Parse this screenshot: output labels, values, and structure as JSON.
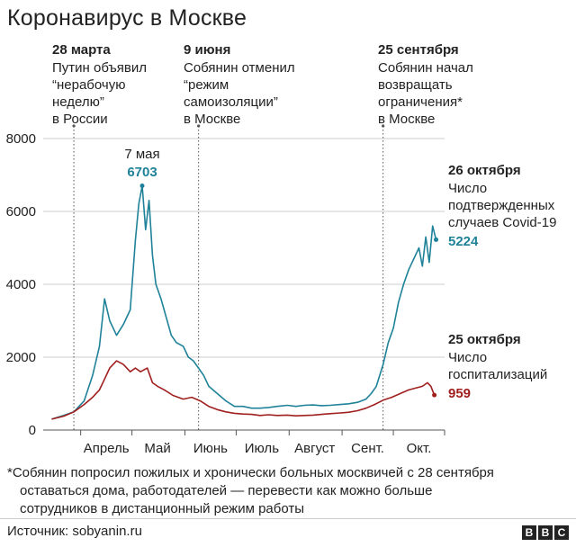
{
  "title": "Коронавирус в Москве",
  "events": [
    {
      "date": "28 марта",
      "text": [
        "Путин объявил",
        "“нерабочую",
        "неделю”",
        "в России"
      ]
    },
    {
      "date": "9 июня",
      "text": [
        "Собянин отменил",
        "“режим",
        "самоизоляции”",
        "в Москве"
      ]
    },
    {
      "date": "25 сентября",
      "text": [
        "Собянин начал",
        "возвращать",
        "ограничения*",
        "в Москве"
      ]
    }
  ],
  "peak": {
    "date": "7 мая",
    "value": "6703"
  },
  "cases_label": {
    "date": "26 октября",
    "lines": [
      "Число",
      "подтвержденных",
      "случаев Covid-19"
    ],
    "value": "5224"
  },
  "hosp_label": {
    "date": "25 октября",
    "lines": [
      "Число",
      "госпитализаций"
    ],
    "value": "959"
  },
  "footnote": [
    "*Собянин попросил пожилых и хронически больных москвичей с 28 сентября",
    "оставаться дома, работодателей — перевести как можно больше",
    "сотрудников в дистанционный режим работы"
  ],
  "source": "Источник: sobyanin.ru",
  "logo": [
    "B",
    "B",
    "C"
  ],
  "colors": {
    "cases": "#1f8299",
    "hospitalized": "#a01f1f",
    "grid": "#cccccc",
    "text": "#222222"
  },
  "chart_data": {
    "type": "line",
    "x_unit": "2020 date",
    "ylim": [
      0,
      8000
    ],
    "yticks": [
      0,
      2000,
      4000,
      6000,
      8000
    ],
    "xticks": [
      "Апрель",
      "Май",
      "Июнь",
      "Июль",
      "Август",
      "Сент.",
      "Окт."
    ],
    "series": [
      {
        "key": "cases",
        "points": [
          [
            "2020-03-15",
            300
          ],
          [
            "2020-03-22",
            400
          ],
          [
            "2020-03-28",
            500
          ],
          [
            "2020-04-03",
            800
          ],
          [
            "2020-04-08",
            1500
          ],
          [
            "2020-04-12",
            2300
          ],
          [
            "2020-04-15",
            3600
          ],
          [
            "2020-04-18",
            3000
          ],
          [
            "2020-04-22",
            2600
          ],
          [
            "2020-04-26",
            2900
          ],
          [
            "2020-04-30",
            3300
          ],
          [
            "2020-05-03",
            5200
          ],
          [
            "2020-05-05",
            6200
          ],
          [
            "2020-05-07",
            6703
          ],
          [
            "2020-05-09",
            5500
          ],
          [
            "2020-05-11",
            6300
          ],
          [
            "2020-05-13",
            4800
          ],
          [
            "2020-05-15",
            4000
          ],
          [
            "2020-05-18",
            3600
          ],
          [
            "2020-05-21",
            3100
          ],
          [
            "2020-05-24",
            2600
          ],
          [
            "2020-05-27",
            2400
          ],
          [
            "2020-05-31",
            2300
          ],
          [
            "2020-06-03",
            2000
          ],
          [
            "2020-06-06",
            1900
          ],
          [
            "2020-06-09",
            1700
          ],
          [
            "2020-06-12",
            1500
          ],
          [
            "2020-06-15",
            1200
          ],
          [
            "2020-06-20",
            1000
          ],
          [
            "2020-06-25",
            800
          ],
          [
            "2020-06-30",
            650
          ],
          [
            "2020-07-05",
            650
          ],
          [
            "2020-07-10",
            600
          ],
          [
            "2020-07-15",
            600
          ],
          [
            "2020-07-20",
            620
          ],
          [
            "2020-07-25",
            650
          ],
          [
            "2020-07-31",
            680
          ],
          [
            "2020-08-05",
            650
          ],
          [
            "2020-08-10",
            680
          ],
          [
            "2020-08-15",
            690
          ],
          [
            "2020-08-20",
            670
          ],
          [
            "2020-08-25",
            680
          ],
          [
            "2020-08-31",
            700
          ],
          [
            "2020-09-05",
            720
          ],
          [
            "2020-09-10",
            760
          ],
          [
            "2020-09-15",
            850
          ],
          [
            "2020-09-18",
            1000
          ],
          [
            "2020-09-21",
            1200
          ],
          [
            "2020-09-25",
            1800
          ],
          [
            "2020-09-28",
            2400
          ],
          [
            "2020-10-01",
            2800
          ],
          [
            "2020-10-04",
            3500
          ],
          [
            "2020-10-07",
            4000
          ],
          [
            "2020-10-10",
            4400
          ],
          [
            "2020-10-13",
            4700
          ],
          [
            "2020-10-16",
            5000
          ],
          [
            "2020-10-18",
            4500
          ],
          [
            "2020-10-20",
            5300
          ],
          [
            "2020-10-22",
            4600
          ],
          [
            "2020-10-24",
            5600
          ],
          [
            "2020-10-26",
            5224
          ]
        ]
      },
      {
        "key": "hospitalized",
        "points": [
          [
            "2020-03-15",
            300
          ],
          [
            "2020-03-22",
            380
          ],
          [
            "2020-03-28",
            500
          ],
          [
            "2020-04-03",
            700
          ],
          [
            "2020-04-08",
            900
          ],
          [
            "2020-04-12",
            1100
          ],
          [
            "2020-04-15",
            1400
          ],
          [
            "2020-04-18",
            1700
          ],
          [
            "2020-04-22",
            1900
          ],
          [
            "2020-04-26",
            1800
          ],
          [
            "2020-04-30",
            1600
          ],
          [
            "2020-05-03",
            1700
          ],
          [
            "2020-05-06",
            1600
          ],
          [
            "2020-05-10",
            1700
          ],
          [
            "2020-05-13",
            1300
          ],
          [
            "2020-05-16",
            1200
          ],
          [
            "2020-05-20",
            1100
          ],
          [
            "2020-05-25",
            950
          ],
          [
            "2020-05-31",
            850
          ],
          [
            "2020-06-05",
            900
          ],
          [
            "2020-06-10",
            800
          ],
          [
            "2020-06-15",
            650
          ],
          [
            "2020-06-20",
            560
          ],
          [
            "2020-06-25",
            500
          ],
          [
            "2020-06-30",
            460
          ],
          [
            "2020-07-05",
            440
          ],
          [
            "2020-07-10",
            430
          ],
          [
            "2020-07-15",
            400
          ],
          [
            "2020-07-20",
            420
          ],
          [
            "2020-07-25",
            400
          ],
          [
            "2020-07-31",
            410
          ],
          [
            "2020-08-05",
            390
          ],
          [
            "2020-08-10",
            400
          ],
          [
            "2020-08-15",
            410
          ],
          [
            "2020-08-20",
            430
          ],
          [
            "2020-08-25",
            450
          ],
          [
            "2020-08-31",
            470
          ],
          [
            "2020-09-05",
            490
          ],
          [
            "2020-09-10",
            530
          ],
          [
            "2020-09-15",
            600
          ],
          [
            "2020-09-20",
            700
          ],
          [
            "2020-09-25",
            820
          ],
          [
            "2020-09-30",
            900
          ],
          [
            "2020-10-05",
            1000
          ],
          [
            "2020-10-10",
            1100
          ],
          [
            "2020-10-14",
            1150
          ],
          [
            "2020-10-18",
            1200
          ],
          [
            "2020-10-21",
            1300
          ],
          [
            "2020-10-23",
            1200
          ],
          [
            "2020-10-25",
            959
          ]
        ]
      }
    ]
  }
}
